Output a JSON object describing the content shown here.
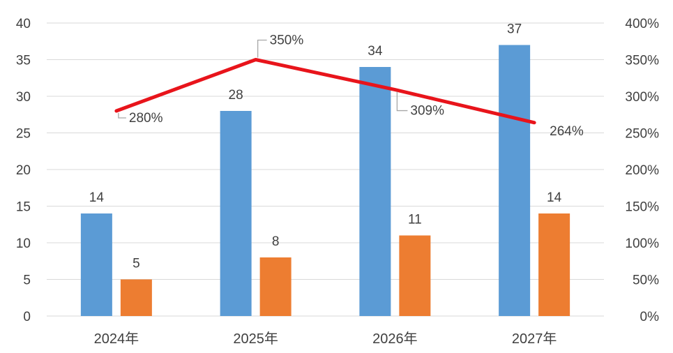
{
  "chart_data": {
    "type": "bar",
    "categories": [
      "2024年",
      "2025年",
      "2026年",
      "2027年"
    ],
    "series": [
      {
        "type": "bar",
        "axis": "left",
        "values": [
          14,
          28,
          34,
          37
        ],
        "color": "#5B9BD5"
      },
      {
        "type": "bar",
        "axis": "left",
        "values": [
          5,
          8,
          11,
          14
        ],
        "color": "#ED7D31"
      },
      {
        "type": "line",
        "axis": "right",
        "values": [
          280,
          350,
          309,
          264
        ],
        "labels": [
          "280%",
          "350%",
          "309%",
          "264%"
        ],
        "color": "#E8141B"
      }
    ],
    "left_axis": {
      "ylim": [
        0,
        40
      ],
      "ticks": [
        "0",
        "5",
        "10",
        "15",
        "20",
        "25",
        "30",
        "35",
        "40"
      ]
    },
    "right_axis": {
      "ylim": [
        0,
        400
      ],
      "ticks": [
        "0%",
        "50%",
        "100%",
        "150%",
        "200%",
        "250%",
        "300%",
        "350%",
        "400%"
      ]
    },
    "grid": true,
    "legend": "none",
    "grid_color": "#D9D9D9",
    "text_color": "#404040"
  }
}
